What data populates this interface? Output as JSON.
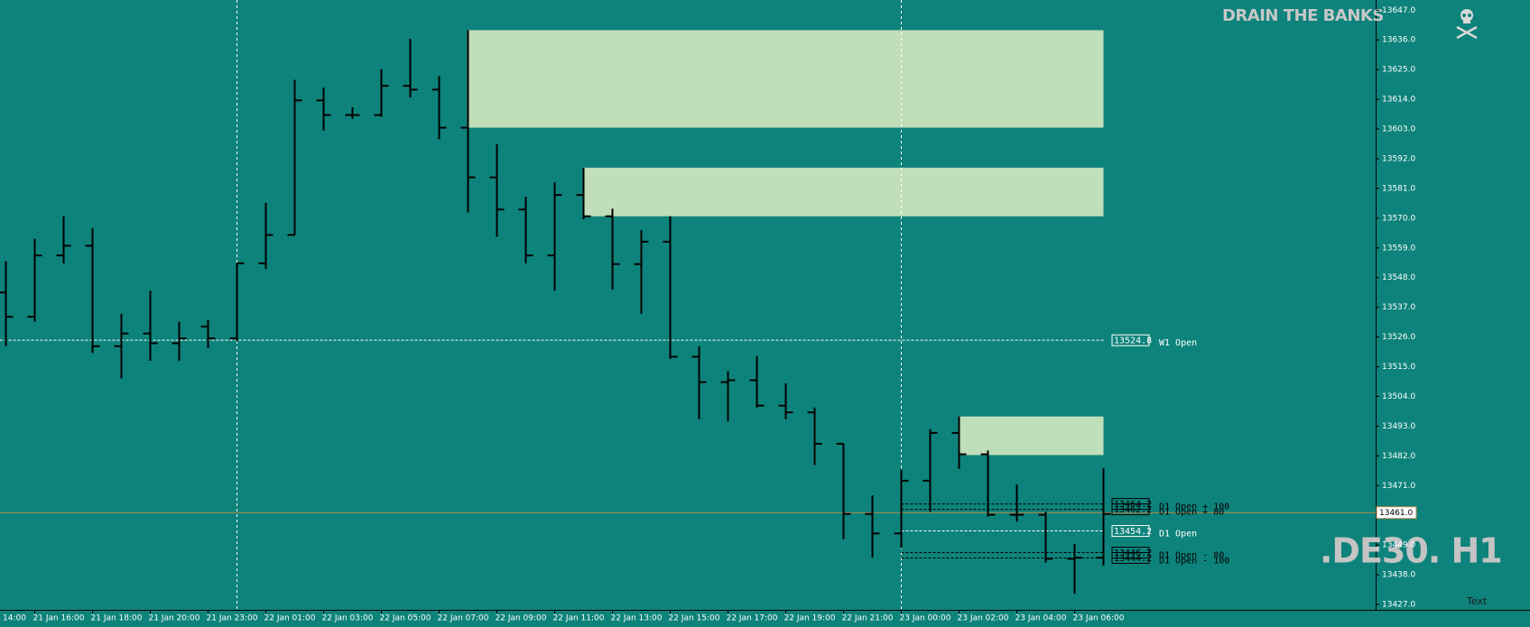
{
  "chart_data": {
    "type": "ohlc",
    "symbol_watermark": ".DE30. H1",
    "brand": "DRAIN THE BANKS",
    "corner_text": "Text",
    "clipped_x_label": "14:00",
    "categories": [
      null,
      "21 Jan 16:00",
      null,
      "21 Jan 18:00",
      null,
      "21 Jan 20:00",
      null,
      "21 Jan 23:00",
      null,
      "22 Jan 01:00",
      null,
      "22 Jan 03:00",
      null,
      "22 Jan 05:00",
      null,
      "22 Jan 07:00",
      null,
      "22 Jan 09:00",
      null,
      "22 Jan 11:00",
      null,
      "22 Jan 13:00",
      null,
      "22 Jan 15:00",
      null,
      "22 Jan 17:00",
      null,
      "22 Jan 19:00",
      null,
      "22 Jan 21:00",
      null,
      "23 Jan 00:00",
      null,
      "23 Jan 02:00",
      null,
      "23 Jan 04:00",
      null,
      "23 Jan 06:00",
      null
    ],
    "open": [
      13542.5,
      13533.5,
      13556.2,
      13559.8,
      13522.6,
      13527.3,
      13523.7,
      13529.9,
      13525.5,
      13553.3,
      13563.8,
      13613.6,
      13608.2,
      13608.2,
      13619.0,
      13617.6,
      13603.5,
      13585.1,
      13573.2,
      13556.2,
      13578.6,
      13570.7,
      13553.0,
      13561.3,
      13518.7,
      13509.3,
      13510.0,
      13500.6,
      13498.1,
      13486.5,
      13460.5,
      13453.3,
      13472.8,
      13490.5,
      13482.6,
      13460.2,
      13460.2,
      13443.9,
      13444.3
    ],
    "high": [
      13554.1,
      13562.4,
      13570.7,
      13566.3,
      13534.6,
      13543.2,
      13531.7,
      13532.4,
      13553.3,
      13575.7,
      13621.2,
      13618.3,
      13611.1,
      13625.2,
      13636.4,
      13622.6,
      13639.6,
      13597.4,
      13577.9,
      13583.3,
      13588.7,
      13573.5,
      13565.6,
      13570.7,
      13522.6,
      13513.3,
      13519.0,
      13508.9,
      13499.9,
      13486.5,
      13467.4,
      13476.8,
      13491.9,
      13496.6,
      13484.0,
      13471.4,
      13461.3,
      13449.4,
      13477.5
    ],
    "low": [
      13522.6,
      13531.7,
      13553.3,
      13520.1,
      13510.7,
      13517.2,
      13517.2,
      13521.9,
      13524.4,
      13551.2,
      13563.8,
      13602.4,
      13606.8,
      13607.5,
      13614.7,
      13599.2,
      13572.1,
      13563.1,
      13553.3,
      13543.2,
      13569.6,
      13543.6,
      13534.6,
      13517.9,
      13495.6,
      13494.8,
      13499.9,
      13495.6,
      13478.6,
      13451.2,
      13444.3,
      13447.9,
      13461.3,
      13477.2,
      13459.5,
      13457.7,
      13442.5,
      13430.9,
      13441.4
    ],
    "close": [
      13533.5,
      13556.2,
      13559.8,
      13522.6,
      13527.3,
      13523.7,
      13525.5,
      13525.5,
      13553.3,
      13563.8,
      13613.6,
      13608.2,
      13608.2,
      13619.0,
      13617.6,
      13603.5,
      13585.1,
      13573.2,
      13556.2,
      13578.6,
      13570.7,
      13553.0,
      13561.3,
      13518.7,
      13509.3,
      13510.0,
      13500.6,
      13498.1,
      13486.5,
      13460.5,
      13453.3,
      13472.8,
      13490.5,
      13482.6,
      13460.2,
      13460.2,
      13443.9,
      13444.3,
      13460.5
    ],
    "bar_color": "#000000",
    "background": "#0e837b",
    "zones": [
      {
        "start_bar": 16,
        "high": 13639.6,
        "low": 13603.5
      },
      {
        "start_bar": 20,
        "high": 13588.7,
        "low": 13570.7
      },
      {
        "start_bar": 33,
        "high": 13496.6,
        "low": 13482.3
      }
    ],
    "zone_color": "#bfdeb9",
    "levels": [
      {
        "name": "W1 Open",
        "value": 13524.8,
        "start_bar": 0,
        "color": "#ffffff"
      },
      {
        "name": "D1 Open + 100",
        "value": 13464.2,
        "start_bar": 31,
        "color": "#000000"
      },
      {
        "name": "D1 Open + 80",
        "value": 13462.2,
        "start_bar": 31,
        "color": "#000000"
      },
      {
        "name": "D1 Open",
        "value": 13454.2,
        "start_bar": 31,
        "color": "#ffffff"
      },
      {
        "name": "D1 Open - 80",
        "value": 13446.2,
        "start_bar": 31,
        "color": "#000000"
      },
      {
        "name": "D1 Open - 100",
        "value": 13444.2,
        "start_bar": 31,
        "color": "#000000"
      }
    ],
    "current_price": {
      "value": 13461.0,
      "label": "13461.0",
      "color": "#b38b4d"
    },
    "period_separators": [
      8,
      31
    ],
    "ylim": [
      13427,
      13647
    ],
    "yticks": [
      {
        "value": 13647,
        "label": "13647.0"
      },
      {
        "value": 13636,
        "label": "13636.0"
      },
      {
        "value": 13625,
        "label": "13625.0"
      },
      {
        "value": 13614,
        "label": "13614.0"
      },
      {
        "value": 13603,
        "label": "13603.0"
      },
      {
        "value": 13592,
        "label": "13592.0"
      },
      {
        "value": 13581,
        "label": "13581.0"
      },
      {
        "value": 13570,
        "label": "13570.0"
      },
      {
        "value": 13559,
        "label": "13559.0"
      },
      {
        "value": 13548,
        "label": "13548.0"
      },
      {
        "value": 13537,
        "label": "13537.0"
      },
      {
        "value": 13526,
        "label": "13526.0"
      },
      {
        "value": 13515,
        "label": "13515.0"
      },
      {
        "value": 13504,
        "label": "13504.0"
      },
      {
        "value": 13493,
        "label": "13493.0"
      },
      {
        "value": 13482,
        "label": "13482.0"
      },
      {
        "value": 13471,
        "label": "13471.0"
      },
      {
        "value": 13460,
        "label": "13460.0"
      },
      {
        "value": 13449,
        "label": "13449.0"
      },
      {
        "value": 13438,
        "label": "13438.0"
      },
      {
        "value": 13427,
        "label": "13427.0"
      }
    ]
  }
}
